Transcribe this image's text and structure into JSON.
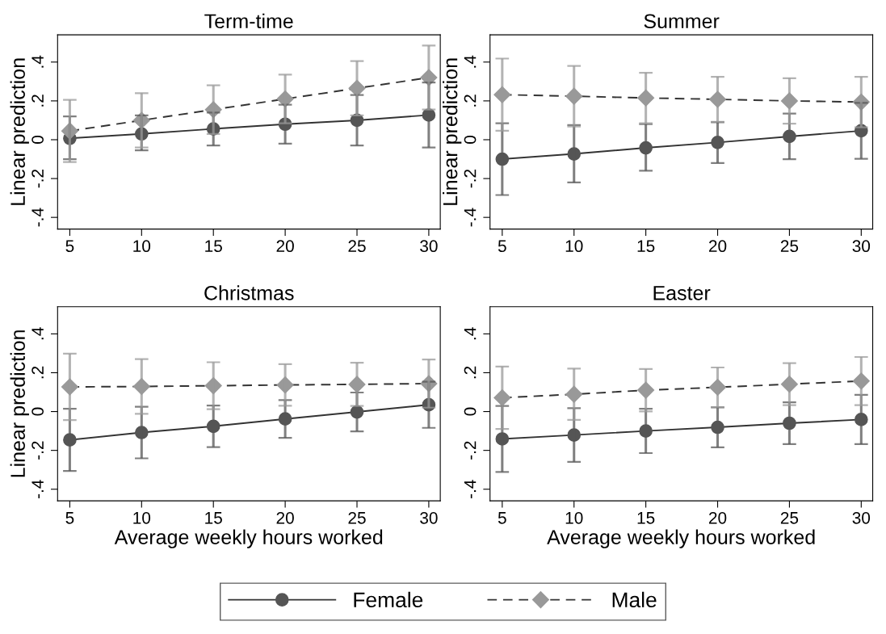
{
  "chart_data": [
    {
      "type": "line",
      "title": "Term-time",
      "ylabel": "Linear prediction",
      "x": [
        5,
        10,
        15,
        20,
        25,
        30
      ],
      "xlim": [
        4.15,
        30.8
      ],
      "xticks": [
        5,
        10,
        15,
        20,
        25,
        30
      ],
      "ylim": [
        -0.46,
        0.54
      ],
      "yticks": [
        {
          "value": -0.4,
          "label": "-.4"
        },
        {
          "value": -0.2,
          "label": "-.2"
        },
        {
          "value": 0,
          "label": "0"
        },
        {
          "value": 0.2,
          "label": ".2"
        },
        {
          "value": 0.4,
          "label": ".4"
        }
      ],
      "grid": false,
      "legend": "bottom",
      "series": [
        {
          "name": "Female",
          "color": "#555555",
          "marker": "circle",
          "line_style": "solid",
          "values": [
            0.007,
            0.03,
            0.056,
            0.08,
            0.1,
            0.127
          ],
          "errors": [
            [
              -0.1,
              0.12
            ],
            [
              -0.055,
              0.125
            ],
            [
              -0.03,
              0.14
            ],
            [
              -0.02,
              0.18
            ],
            [
              -0.03,
              0.23
            ],
            [
              -0.04,
              0.295
            ]
          ]
        },
        {
          "name": "Male",
          "color": "#999999",
          "marker": "diamond",
          "line_style": "dashed",
          "values": [
            0.045,
            0.1,
            0.155,
            0.21,
            0.265,
            0.32
          ],
          "errors": [
            [
              -0.115,
              0.205
            ],
            [
              -0.04,
              0.24
            ],
            [
              0.03,
              0.28
            ],
            [
              0.085,
              0.335
            ],
            [
              0.125,
              0.405
            ],
            [
              0.155,
              0.485
            ]
          ]
        }
      ]
    },
    {
      "type": "line",
      "title": "Summer",
      "ylabel": "Linear prediction",
      "x": [
        5,
        10,
        15,
        20,
        25,
        30
      ],
      "xlim": [
        4.15,
        30.8
      ],
      "xticks": [
        5,
        10,
        15,
        20,
        25,
        30
      ],
      "ylim": [
        -0.46,
        0.54
      ],
      "yticks": [
        {
          "value": -0.4,
          "label": "-.4"
        },
        {
          "value": -0.2,
          "label": "-.2"
        },
        {
          "value": 0,
          "label": "0"
        },
        {
          "value": 0.2,
          "label": ".2"
        },
        {
          "value": 0.4,
          "label": ".4"
        }
      ],
      "grid": false,
      "series": [
        {
          "color": "#555555",
          "marker": "circle",
          "line_style": "solid",
          "values": [
            -0.1,
            -0.073,
            -0.042,
            -0.014,
            0.017,
            0.046
          ],
          "errors": [
            [
              -0.285,
              0.085
            ],
            [
              -0.22,
              0.075
            ],
            [
              -0.16,
              0.08
            ],
            [
              -0.12,
              0.09
            ],
            [
              -0.1,
              0.135
            ],
            [
              -0.098,
              0.19
            ]
          ]
        },
        {
          "color": "#999999",
          "marker": "diamond",
          "line_style": "dashed",
          "values": [
            0.232,
            0.224,
            0.215,
            0.208,
            0.2,
            0.194
          ],
          "errors": [
            [
              0.046,
              0.418
            ],
            [
              0.068,
              0.38
            ],
            [
              0.085,
              0.345
            ],
            [
              0.092,
              0.324
            ],
            [
              0.083,
              0.317
            ],
            [
              0.064,
              0.324
            ]
          ]
        }
      ]
    },
    {
      "type": "line",
      "title": "Christmas",
      "xlabel": "Average weekly hours worked",
      "ylabel": "Linear prediction",
      "x": [
        5,
        10,
        15,
        20,
        25,
        30
      ],
      "xlim": [
        4.15,
        30.8
      ],
      "xticks": [
        5,
        10,
        15,
        20,
        25,
        30
      ],
      "ylim": [
        -0.46,
        0.54
      ],
      "yticks": [
        {
          "value": -0.4,
          "label": "-.4"
        },
        {
          "value": -0.2,
          "label": "-.2"
        },
        {
          "value": 0,
          "label": "0"
        },
        {
          "value": 0.2,
          "label": ".2"
        },
        {
          "value": 0.4,
          "label": ".4"
        }
      ],
      "grid": false,
      "series": [
        {
          "color": "#555555",
          "marker": "circle",
          "line_style": "solid",
          "values": [
            -0.146,
            -0.108,
            -0.076,
            -0.038,
            -0.002,
            0.035
          ],
          "errors": [
            [
              -0.306,
              0.014
            ],
            [
              -0.241,
              0.025
            ],
            [
              -0.183,
              0.031
            ],
            [
              -0.135,
              0.059
            ],
            [
              -0.102,
              0.098
            ],
            [
              -0.084,
              0.154
            ]
          ]
        },
        {
          "color": "#999999",
          "marker": "diamond",
          "line_style": "dashed",
          "values": [
            0.127,
            0.129,
            0.133,
            0.137,
            0.14,
            0.144
          ],
          "errors": [
            [
              -0.044,
              0.298
            ],
            [
              -0.012,
              0.27
            ],
            [
              0.012,
              0.254
            ],
            [
              0.03,
              0.244
            ],
            [
              0.029,
              0.251
            ],
            [
              0.02,
              0.268
            ]
          ]
        }
      ]
    },
    {
      "type": "line",
      "title": "Easter",
      "xlabel": "Average weekly hours worked",
      "x": [
        5,
        10,
        15,
        20,
        25,
        30
      ],
      "xlim": [
        4.15,
        30.8
      ],
      "xticks": [
        5,
        10,
        15,
        20,
        25,
        30
      ],
      "ylim": [
        -0.46,
        0.54
      ],
      "yticks": [
        {
          "value": -0.4,
          "label": "-.4"
        },
        {
          "value": -0.2,
          "label": "-.2"
        },
        {
          "value": 0,
          "label": "0"
        },
        {
          "value": 0.2,
          "label": ".2"
        },
        {
          "value": 0.4,
          "label": ".4"
        }
      ],
      "grid": false,
      "series": [
        {
          "color": "#555555",
          "marker": "circle",
          "line_style": "solid",
          "values": [
            -0.141,
            -0.121,
            -0.1,
            -0.081,
            -0.06,
            -0.041
          ],
          "errors": [
            [
              -0.311,
              0.029
            ],
            [
              -0.259,
              0.017
            ],
            [
              -0.214,
              0.014
            ],
            [
              -0.184,
              0.022
            ],
            [
              -0.168,
              0.048
            ],
            [
              -0.168,
              0.086
            ]
          ]
        },
        {
          "color": "#999999",
          "marker": "diamond",
          "line_style": "dashed",
          "values": [
            0.071,
            0.089,
            0.11,
            0.125,
            0.141,
            0.157
          ],
          "errors": [
            [
              -0.09,
              0.232
            ],
            [
              -0.043,
              0.221
            ],
            [
              0.001,
              0.219
            ],
            [
              0.023,
              0.227
            ],
            [
              0.033,
              0.249
            ],
            [
              0.033,
              0.281
            ]
          ]
        }
      ]
    }
  ]
}
